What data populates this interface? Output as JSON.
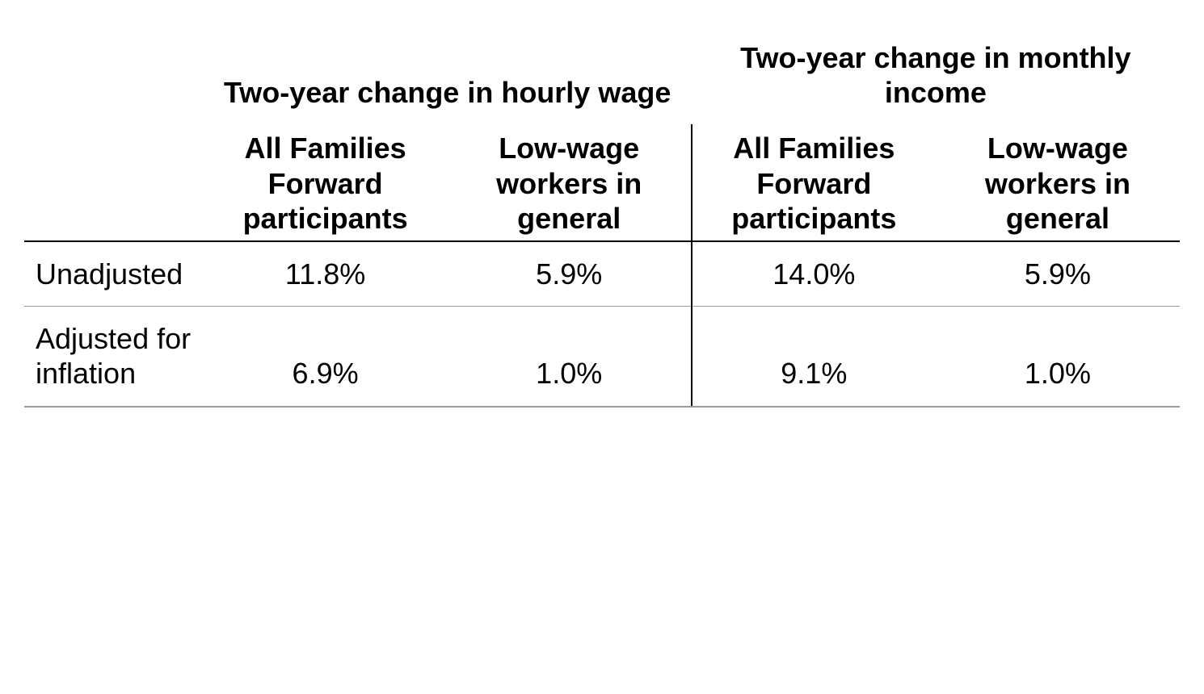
{
  "table": {
    "type": "table",
    "background_color": "#ffffff",
    "text_color": "#000000",
    "header_font_weight": 700,
    "body_font_weight": 400,
    "font_size_pt": 27,
    "header_rule_color": "#000000",
    "row_rule_color": "#9a9a9a",
    "vdivider_color": "#000000",
    "column_groups": [
      {
        "label": "Two-year change in hourly wage"
      },
      {
        "label": "Two-year change in monthly income"
      }
    ],
    "sub_columns": [
      "All Families Forward participants",
      "Low-wage workers in general",
      "All Families Forward participants",
      "Low-wage workers in general"
    ],
    "row_labels": [
      "Unadjusted",
      "Adjusted for inflation"
    ],
    "rows": [
      [
        "11.8%",
        "5.9%",
        "14.0%",
        "5.9%"
      ],
      [
        "6.9%",
        "1.0%",
        "9.1%",
        "1.0%"
      ]
    ]
  }
}
